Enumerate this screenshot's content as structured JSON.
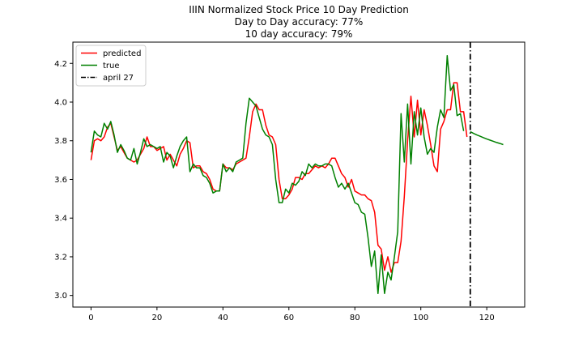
{
  "chart_data": {
    "type": "line",
    "title": "IIIN Normalized Stock Price 10 Day Prediction",
    "subtitle_lines": [
      "Day to Day accuracy: 77%",
      "10 day accuracy: 79%"
    ],
    "xlabel": "",
    "ylabel": "",
    "xlim": [
      -5.5,
      131.5
    ],
    "ylim": [
      2.94,
      4.31
    ],
    "xticks": [
      0,
      20,
      40,
      60,
      80,
      100,
      120
    ],
    "yticks": [
      3.0,
      3.2,
      3.4,
      3.6,
      3.8,
      4.0,
      4.2
    ],
    "grid": false,
    "legend_position": "top-left",
    "series": [
      {
        "name": "predicted",
        "color": "#ff0000",
        "x_start": 0,
        "values": [
          3.7,
          3.8,
          3.81,
          3.8,
          3.82,
          3.87,
          3.89,
          3.82,
          3.75,
          3.77,
          3.74,
          3.71,
          3.7,
          3.69,
          3.7,
          3.73,
          3.76,
          3.82,
          3.77,
          3.77,
          3.75,
          3.76,
          3.77,
          3.7,
          3.73,
          3.7,
          3.67,
          3.73,
          3.76,
          3.8,
          3.79,
          3.66,
          3.67,
          3.67,
          3.64,
          3.63,
          3.6,
          3.55,
          3.54,
          3.54,
          3.68,
          3.66,
          3.66,
          3.65,
          3.68,
          3.69,
          3.7,
          3.71,
          3.82,
          3.95,
          3.99,
          3.96,
          3.96,
          3.88,
          3.83,
          3.82,
          3.78,
          3.6,
          3.5,
          3.5,
          3.52,
          3.55,
          3.61,
          3.61,
          3.6,
          3.63,
          3.63,
          3.65,
          3.67,
          3.66,
          3.67,
          3.66,
          3.68,
          3.71,
          3.71,
          3.67,
          3.63,
          3.61,
          3.56,
          3.6,
          3.54,
          3.53,
          3.52,
          3.52,
          3.5,
          3.49,
          3.43,
          3.26,
          3.24,
          3.13,
          3.2,
          3.12,
          3.17,
          3.17,
          3.28,
          3.51,
          3.8,
          4.03,
          3.82,
          4.01,
          3.83,
          3.96,
          3.88,
          3.78,
          3.67,
          3.64,
          3.86,
          3.9,
          3.96,
          3.96,
          4.1,
          4.1,
          3.95,
          3.95,
          3.82
        ]
      },
      {
        "name": "true",
        "color": "#008000",
        "x_start": 0,
        "values": [
          3.74,
          3.85,
          3.83,
          3.82,
          3.89,
          3.86,
          3.9,
          3.83,
          3.74,
          3.78,
          3.75,
          3.71,
          3.7,
          3.76,
          3.68,
          3.74,
          3.81,
          3.77,
          3.78,
          3.77,
          3.76,
          3.77,
          3.69,
          3.74,
          3.72,
          3.66,
          3.72,
          3.77,
          3.8,
          3.82,
          3.64,
          3.68,
          3.66,
          3.66,
          3.62,
          3.61,
          3.58,
          3.53,
          3.54,
          3.54,
          3.68,
          3.64,
          3.66,
          3.64,
          3.69,
          3.7,
          3.71,
          3.89,
          4.02,
          4.0,
          3.98,
          3.92,
          3.86,
          3.83,
          3.82,
          3.78,
          3.6,
          3.48,
          3.48,
          3.55,
          3.53,
          3.58,
          3.57,
          3.59,
          3.64,
          3.62,
          3.68,
          3.66,
          3.68,
          3.67,
          3.67,
          3.68,
          3.68,
          3.67,
          3.61,
          3.56,
          3.58,
          3.55,
          3.58,
          3.53,
          3.48,
          3.47,
          3.43,
          3.42,
          3.3,
          3.15,
          3.23,
          3.01,
          3.21,
          3.01,
          3.12,
          3.08,
          3.2,
          3.33,
          3.94,
          3.69,
          3.99,
          3.68,
          3.95,
          3.83,
          3.97,
          3.82,
          3.73,
          3.76,
          3.74,
          3.87,
          3.96,
          3.92,
          4.24,
          4.06,
          4.09,
          3.93,
          3.94,
          3.85
        ]
      },
      {
        "name": "",
        "color": "#008000",
        "x_start": 115,
        "values": [
          3.847,
          3.838,
          3.83,
          3.823,
          3.816,
          3.809,
          3.803,
          3.797,
          3.791,
          3.786,
          3.78
        ]
      }
    ],
    "vlines": [
      {
        "name": "april 27",
        "x": 115,
        "color": "#000000",
        "style": "dash-dot"
      }
    ]
  }
}
